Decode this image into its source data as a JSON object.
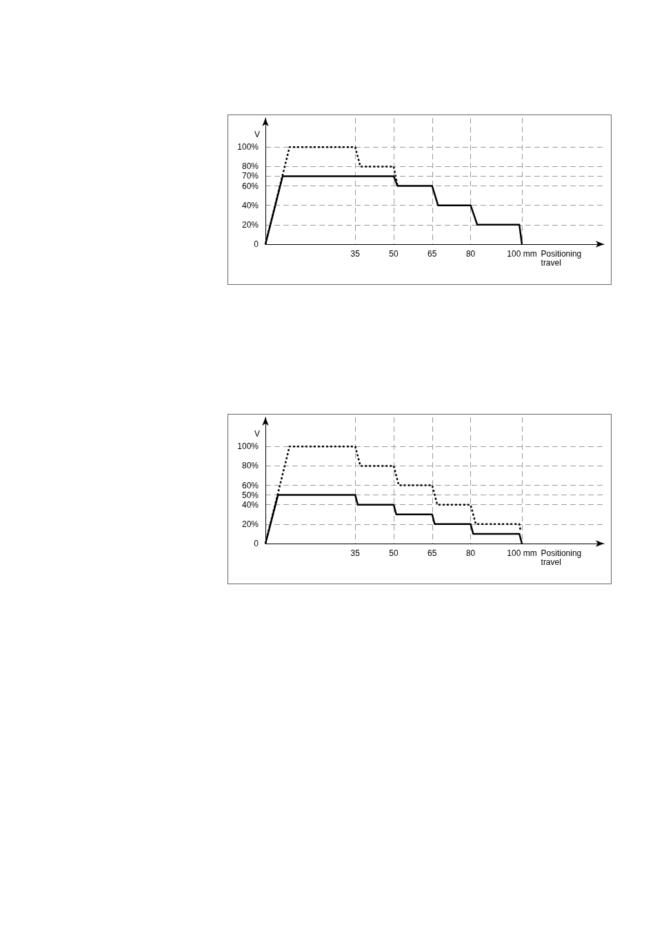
{
  "chart_data": [
    {
      "type": "line",
      "ylabel": "V",
      "xlabel": "Positioning\ntravel",
      "xlim": [
        0,
        132
      ],
      "ylim": [
        0,
        130
      ],
      "xticks": [
        35,
        50,
        65,
        80,
        {
          "value": 100,
          "label": "100 mm"
        }
      ],
      "yticks": [
        {
          "value": 0,
          "label": "0"
        },
        {
          "value": 20,
          "label": "20%"
        },
        {
          "value": 40,
          "label": "40%"
        },
        {
          "value": 60,
          "label": "60%"
        },
        {
          "value": 70,
          "label": "70%"
        },
        {
          "value": 80,
          "label": "80%"
        },
        {
          "value": 100,
          "label": "100%"
        }
      ],
      "grid": true,
      "marker": "none",
      "series": [
        {
          "color": "#000000",
          "line_style": "solid",
          "x": [
            0,
            6.7,
            50,
            51.5,
            65,
            67.3,
            80,
            82.6,
            99,
            100
          ],
          "values": [
            0,
            70,
            70,
            60,
            60,
            40,
            40,
            20,
            20,
            0
          ]
        },
        {
          "color": "#000000",
          "line_style": "dashed",
          "x": [
            0,
            9.4,
            35,
            37,
            50,
            51.5
          ],
          "values": [
            0,
            100,
            100,
            80,
            80,
            60
          ]
        }
      ]
    },
    {
      "type": "line",
      "ylabel": "V",
      "xlabel": "Positioning\ntravel",
      "xlim": [
        0,
        132
      ],
      "ylim": [
        0,
        130
      ],
      "xticks": [
        35,
        50,
        65,
        80,
        {
          "value": 100,
          "label": "100 mm"
        }
      ],
      "yticks": [
        {
          "value": 0,
          "label": "0"
        },
        {
          "value": 20,
          "label": "20%"
        },
        {
          "value": 40,
          "label": "40%"
        },
        {
          "value": 50,
          "label": "50%"
        },
        {
          "value": 60,
          "label": "60%"
        },
        {
          "value": 80,
          "label": "80%"
        },
        {
          "value": 100,
          "label": "100%"
        }
      ],
      "grid": true,
      "marker": "none",
      "series": [
        {
          "color": "#000000",
          "line_style": "solid",
          "x": [
            0,
            4.9,
            35,
            36,
            50,
            51,
            65,
            66,
            80,
            81,
            99,
            100
          ],
          "values": [
            0,
            50,
            50,
            40,
            40,
            30,
            30,
            20,
            20,
            10,
            10,
            0
          ]
        },
        {
          "color": "#000000",
          "line_style": "dashed",
          "x": [
            0,
            9.4,
            35,
            37,
            50,
            52,
            65,
            67,
            80,
            82,
            99,
            99.5
          ],
          "values": [
            0,
            100,
            100,
            80,
            80,
            60,
            60,
            40,
            40,
            20,
            20,
            13
          ]
        }
      ]
    }
  ]
}
